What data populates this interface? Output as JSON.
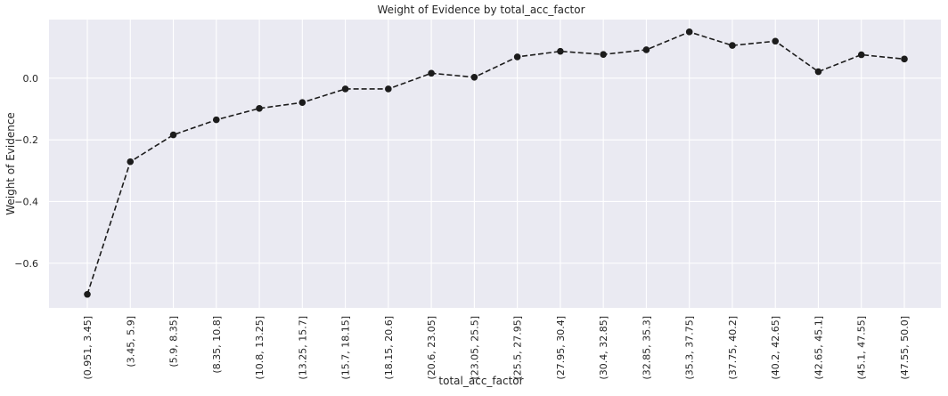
{
  "chart_data": {
    "type": "line",
    "title": "Weight of Evidence by total_acc_factor",
    "xlabel": "total_acc_factor",
    "ylabel": "Weight of Evidence",
    "categories": [
      "(0.951, 3.45]",
      "(3.45, 5.9]",
      "(5.9, 8.35]",
      "(8.35, 10.8]",
      "(10.8, 13.25]",
      "(13.25, 15.7]",
      "(15.7, 18.15]",
      "(18.15, 20.6]",
      "(20.6, 23.05]",
      "(23.05, 25.5]",
      "(25.5, 27.95]",
      "(27.95, 30.4]",
      "(30.4, 32.85]",
      "(32.85, 35.3]",
      "(35.3, 37.75]",
      "(37.75, 40.2]",
      "(40.2, 42.65]",
      "(42.65, 45.1]",
      "(45.1, 47.55]",
      "(47.55, 50.0]"
    ],
    "values": [
      -0.701,
      -0.271,
      -0.184,
      -0.135,
      -0.098,
      -0.079,
      -0.035,
      -0.035,
      0.016,
      0.003,
      0.069,
      0.087,
      0.077,
      0.092,
      0.15,
      0.106,
      0.12,
      0.021,
      0.076,
      0.062
    ],
    "yticks": [
      -0.6,
      -0.4,
      -0.2,
      0.0
    ],
    "ytick_labels": [
      "−0.6",
      "−0.4",
      "−0.2",
      "0.0"
    ],
    "ylim": [
      -0.745,
      0.19
    ],
    "grid": true,
    "line_style": "dashed",
    "marker": "circle",
    "colors": {
      "background": "#eaeaf2",
      "grid": "#ffffff",
      "line": "#1c1c1c",
      "text": "#262626"
    }
  }
}
